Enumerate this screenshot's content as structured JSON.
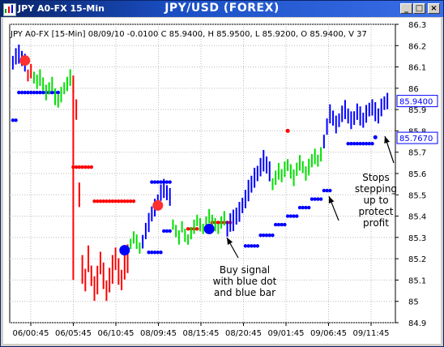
{
  "window": {
    "title_left": "JPY A0-FX 15-Min",
    "title_center": "JPY/USD (FOREX)",
    "buttons": {
      "minimize": "_",
      "maximize": "□",
      "close": "×"
    }
  },
  "info_line": "JPY A0-FX [15-Min] 08/09/10  -0.0100 C 85.9400, H 85.9500, L 85.9200, O 85.9400, V 37",
  "annotations": {
    "buy": [
      "Buy signal",
      "with blue dot",
      "and blue bar"
    ],
    "stops": [
      "Stops",
      "stepping",
      "up to",
      "protect",
      "profit"
    ]
  },
  "chart_data": {
    "type": "bar",
    "title": "JPY/USD (FOREX)",
    "ylim": [
      84.9,
      86.3
    ],
    "yticks": [
      84.9,
      85,
      85.1,
      85.2,
      85.3,
      85.4,
      85.5,
      85.6,
      85.7,
      85.8,
      85.9,
      86,
      86.1,
      86.2,
      86.3
    ],
    "xlabels": [
      "06/00:45",
      "06/05:45",
      "06/10:45",
      "08/09:45",
      "08/15:45",
      "08/20:45",
      "09/01:45",
      "09/06:45",
      "09/11:45"
    ],
    "price_labels": [
      {
        "value": "85.9400",
        "price": 85.94,
        "color": "#0000ff"
      },
      {
        "value": "85.7670",
        "price": 85.767,
        "color": "#0000ff"
      }
    ],
    "colors": {
      "up": "#0000ff",
      "down": "#ff0000",
      "neutral": "#00e000",
      "grid": "#bbbbbb"
    },
    "segments": [
      {
        "color": "#0000ff",
        "mids": [
          86.12,
          86.15,
          86.16,
          86.14,
          86.12
        ],
        "range": 0.08
      },
      {
        "color": "#ff0000",
        "mids": [
          86.06,
          86.08
        ],
        "range": 0.07
      },
      {
        "color": "#00e000",
        "mids": [
          86.05,
          86.03,
          86.05,
          86.02,
          85.98,
          86.0,
          86.02,
          85.96,
          85.94,
          85.97,
          86.0,
          86.02,
          86.05,
          86.01
        ],
        "range": 0.07
      },
      {
        "color": "#ff0000",
        "mids": [
          85.9,
          85.5,
          85.15,
          85.1,
          85.2,
          85.12,
          85.06,
          85.1,
          85.18,
          85.12,
          85.05,
          85.1,
          85.15,
          85.2,
          85.14,
          85.1,
          85.16,
          85.2
        ],
        "range": 0.12
      },
      {
        "color": "#00e000",
        "mids": [
          85.27,
          85.3,
          85.28,
          85.25
        ],
        "range": 0.06
      },
      {
        "color": "#0000ff",
        "mids": [
          85.28,
          85.33,
          85.37,
          85.41,
          85.44,
          85.47,
          85.51,
          85.53,
          85.51,
          85.49
        ],
        "range": 0.08
      },
      {
        "color": "#00e000",
        "mids": [
          85.36,
          85.33,
          85.3,
          85.35,
          85.31,
          85.29,
          85.32,
          85.35,
          85.38,
          85.36,
          85.34,
          85.37,
          85.4,
          85.38,
          85.36,
          85.34,
          85.37,
          85.39
        ],
        "range": 0.06
      },
      {
        "color": "#0000ff",
        "mids": [
          85.34,
          85.37,
          85.38,
          85.4,
          85.42,
          85.45,
          85.48,
          85.52,
          85.55,
          85.58,
          85.6,
          85.63,
          85.66,
          85.64,
          85.61
        ],
        "range": 0.09
      },
      {
        "color": "#00e000",
        "mids": [
          85.55,
          85.58,
          85.61,
          85.59,
          85.62,
          85.64,
          85.61,
          85.58,
          85.62,
          85.65,
          85.63,
          85.6,
          85.63,
          85.66,
          85.68,
          85.66,
          85.69
        ],
        "range": 0.07
      },
      {
        "color": "#0000ff",
        "mids": [
          85.75,
          85.82,
          85.88,
          85.86,
          85.83,
          85.85,
          85.88,
          85.9,
          85.87,
          85.85,
          85.86,
          85.89,
          85.87,
          85.85,
          85.88,
          85.9,
          85.91,
          85.89,
          85.87,
          85.91,
          85.93,
          85.94
        ],
        "range": 0.08
      }
    ],
    "stops": [
      {
        "color": "#0000ff",
        "price": 85.85,
        "from": 0,
        "to": 1
      },
      {
        "color": "#0000ff",
        "price": 85.98,
        "from": 2,
        "to": 15
      },
      {
        "color": "#ff0000",
        "price": 85.63,
        "from": 20,
        "to": 26
      },
      {
        "color": "#ff0000",
        "price": 85.47,
        "from": 27,
        "to": 40
      },
      {
        "color": "#0000ff",
        "price": 85.56,
        "from": 46,
        "to": 52
      },
      {
        "color": "#0000ff",
        "price": 85.23,
        "from": 45,
        "to": 49
      },
      {
        "color": "#0000ff",
        "price": 85.33,
        "from": 50,
        "to": 52
      },
      {
        "color": "#ff0000",
        "price": 85.34,
        "from": 58,
        "to": 61
      },
      {
        "color": "#ff0000",
        "price": 85.37,
        "from": 66,
        "to": 72
      },
      {
        "color": "#0000ff",
        "price": 85.26,
        "from": 77,
        "to": 81
      },
      {
        "color": "#0000ff",
        "price": 85.31,
        "from": 82,
        "to": 86
      },
      {
        "color": "#0000ff",
        "price": 85.36,
        "from": 87,
        "to": 90
      },
      {
        "color": "#0000ff",
        "price": 85.4,
        "from": 91,
        "to": 94
      },
      {
        "color": "#0000ff",
        "price": 85.44,
        "from": 95,
        "to": 98
      },
      {
        "color": "#0000ff",
        "price": 85.48,
        "from": 99,
        "to": 102
      },
      {
        "color": "#0000ff",
        "price": 85.52,
        "from": 103,
        "to": 105
      },
      {
        "color": "#0000ff",
        "price": 85.74,
        "from": 111,
        "to": 119
      }
    ],
    "signals": [
      {
        "color": "#ff3030",
        "index": 4,
        "price": 86.13
      },
      {
        "color": "#0000ff",
        "index": 37,
        "price": 85.24
      },
      {
        "color": "#ff3030",
        "index": 48,
        "price": 85.45
      },
      {
        "color": "#0000ff",
        "index": 65,
        "price": 85.34
      }
    ],
    "single_dots": [
      {
        "color": "#ff0000",
        "index": 91,
        "price": 85.8
      },
      {
        "color": "#0000ff",
        "index": 120,
        "price": 85.77
      }
    ]
  }
}
